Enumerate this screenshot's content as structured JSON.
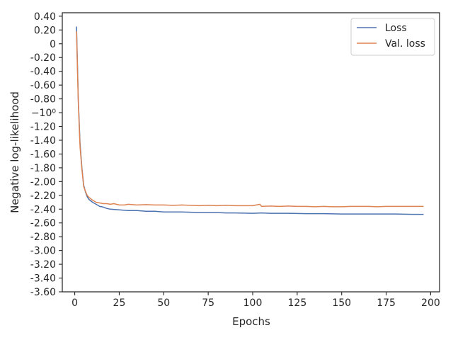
{
  "chart_data": {
    "type": "line",
    "title": "",
    "xlabel": "Epochs",
    "ylabel": "Negative log-likelihood",
    "xlim": [
      -7,
      205
    ],
    "ylim": [
      -3.6,
      0.45
    ],
    "x_ticks": [
      0,
      25,
      50,
      75,
      100,
      125,
      150,
      175,
      200
    ],
    "y_ticks": [
      {
        "value": 0.4,
        "label": "0.40"
      },
      {
        "value": 0.2,
        "label": "0.20"
      },
      {
        "value": 0.0,
        "label": "0"
      },
      {
        "value": -0.2,
        "label": "-0.20"
      },
      {
        "value": -0.4,
        "label": "-0.40"
      },
      {
        "value": -0.6,
        "label": "-0.60"
      },
      {
        "value": -0.8,
        "label": "-0.80"
      },
      {
        "value": -1.0,
        "label": "−10⁰"
      },
      {
        "value": -1.2,
        "label": "-1.20"
      },
      {
        "value": -1.4,
        "label": "-1.40"
      },
      {
        "value": -1.6,
        "label": "-1.60"
      },
      {
        "value": -1.8,
        "label": "-1.80"
      },
      {
        "value": -2.0,
        "label": "-2.00"
      },
      {
        "value": -2.2,
        "label": "-2.20"
      },
      {
        "value": -2.4,
        "label": "-2.40"
      },
      {
        "value": -2.6,
        "label": "-2.60"
      },
      {
        "value": -2.8,
        "label": "-2.80"
      },
      {
        "value": -3.0,
        "label": "-3.00"
      },
      {
        "value": -3.2,
        "label": "-3.20"
      },
      {
        "value": -3.4,
        "label": "-3.40"
      },
      {
        "value": -3.6,
        "label": "-3.60"
      }
    ],
    "grid": false,
    "legend_position": "top-right",
    "series": [
      {
        "name": "Loss",
        "color": "#4c72b0",
        "points": [
          [
            1,
            0.25
          ],
          [
            2,
            -0.8
          ],
          [
            3,
            -1.45
          ],
          [
            4,
            -1.8
          ],
          [
            5,
            -2.05
          ],
          [
            6,
            -2.15
          ],
          [
            7,
            -2.22
          ],
          [
            8,
            -2.26
          ],
          [
            10,
            -2.3
          ],
          [
            12,
            -2.33
          ],
          [
            14,
            -2.36
          ],
          [
            16,
            -2.37
          ],
          [
            18,
            -2.39
          ],
          [
            20,
            -2.4
          ],
          [
            25,
            -2.41
          ],
          [
            30,
            -2.42
          ],
          [
            35,
            -2.42
          ],
          [
            40,
            -2.43
          ],
          [
            45,
            -2.43
          ],
          [
            50,
            -2.44
          ],
          [
            55,
            -2.44
          ],
          [
            60,
            -2.44
          ],
          [
            65,
            -2.445
          ],
          [
            70,
            -2.45
          ],
          [
            75,
            -2.45
          ],
          [
            80,
            -2.45
          ],
          [
            85,
            -2.455
          ],
          [
            90,
            -2.455
          ],
          [
            100,
            -2.46
          ],
          [
            105,
            -2.455
          ],
          [
            110,
            -2.46
          ],
          [
            120,
            -2.46
          ],
          [
            130,
            -2.465
          ],
          [
            140,
            -2.465
          ],
          [
            150,
            -2.47
          ],
          [
            160,
            -2.47
          ],
          [
            170,
            -2.47
          ],
          [
            180,
            -2.47
          ],
          [
            190,
            -2.475
          ],
          [
            196,
            -2.475
          ]
        ]
      },
      {
        "name": "Val. loss",
        "color": "#dd8452",
        "points": [
          [
            1,
            0.18
          ],
          [
            2,
            -0.85
          ],
          [
            3,
            -1.5
          ],
          [
            4,
            -1.82
          ],
          [
            5,
            -2.07
          ],
          [
            6,
            -2.14
          ],
          [
            7,
            -2.2
          ],
          [
            8,
            -2.23
          ],
          [
            10,
            -2.27
          ],
          [
            12,
            -2.3
          ],
          [
            14,
            -2.31
          ],
          [
            16,
            -2.32
          ],
          [
            18,
            -2.32
          ],
          [
            20,
            -2.33
          ],
          [
            22,
            -2.32
          ],
          [
            25,
            -2.34
          ],
          [
            28,
            -2.34
          ],
          [
            30,
            -2.33
          ],
          [
            35,
            -2.34
          ],
          [
            40,
            -2.335
          ],
          [
            45,
            -2.34
          ],
          [
            50,
            -2.34
          ],
          [
            55,
            -2.345
          ],
          [
            60,
            -2.34
          ],
          [
            65,
            -2.345
          ],
          [
            70,
            -2.35
          ],
          [
            75,
            -2.345
          ],
          [
            80,
            -2.35
          ],
          [
            85,
            -2.345
          ],
          [
            90,
            -2.35
          ],
          [
            95,
            -2.35
          ],
          [
            100,
            -2.35
          ],
          [
            104,
            -2.33
          ],
          [
            105,
            -2.36
          ],
          [
            110,
            -2.355
          ],
          [
            115,
            -2.36
          ],
          [
            120,
            -2.355
          ],
          [
            125,
            -2.36
          ],
          [
            130,
            -2.36
          ],
          [
            135,
            -2.365
          ],
          [
            140,
            -2.36
          ],
          [
            145,
            -2.365
          ],
          [
            150,
            -2.365
          ],
          [
            155,
            -2.36
          ],
          [
            160,
            -2.36
          ],
          [
            165,
            -2.36
          ],
          [
            170,
            -2.365
          ],
          [
            175,
            -2.36
          ],
          [
            180,
            -2.36
          ],
          [
            185,
            -2.36
          ],
          [
            190,
            -2.36
          ],
          [
            196,
            -2.36
          ]
        ]
      }
    ]
  }
}
